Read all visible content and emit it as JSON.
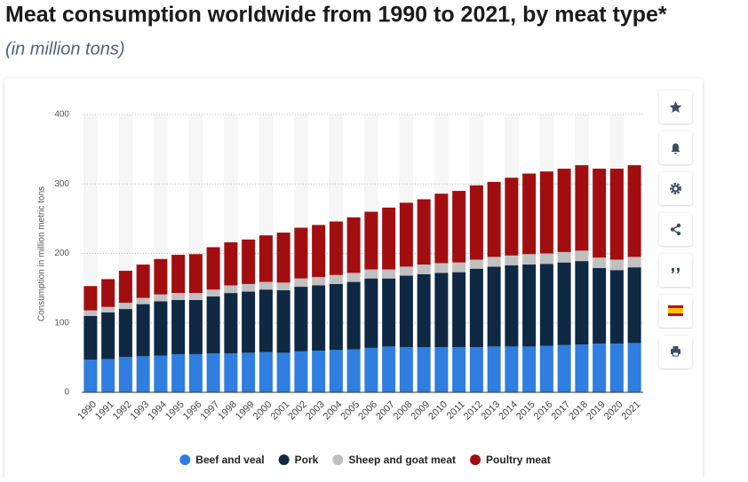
{
  "chart_data": {
    "type": "stacked-bar",
    "title": "Meat consumption worldwide from 1990 to 2021, by meat type*",
    "subtitle": "(in million tons)",
    "y_label": "Consumption in million metric tons",
    "categories": [
      "1990",
      "1991",
      "1992",
      "1993",
      "1994",
      "1995",
      "1996",
      "1997",
      "1998",
      "1999",
      "2000",
      "2001",
      "2002",
      "2003",
      "2004",
      "2005",
      "2006",
      "2007",
      "2008",
      "2009",
      "2010",
      "2011",
      "2012",
      "2013",
      "2014",
      "2015",
      "2016",
      "2017",
      "2018",
      "2019",
      "2020",
      "2021"
    ],
    "series": [
      {
        "name": "Beef and veal",
        "color": "#2f7ee0",
        "values": [
          47,
          48,
          51,
          52,
          53,
          55,
          55,
          56,
          56,
          57,
          58,
          57,
          59,
          60,
          61,
          62,
          64,
          66,
          65,
          65,
          65,
          65,
          65,
          66,
          66,
          66,
          67,
          68,
          69,
          70,
          70,
          71
        ]
      },
      {
        "name": "Pork",
        "color": "#0f2944",
        "values": [
          63,
          67,
          69,
          75,
          78,
          78,
          78,
          82,
          87,
          88,
          90,
          90,
          93,
          94,
          95,
          97,
          100,
          98,
          103,
          105,
          107,
          108,
          113,
          115,
          117,
          118,
          118,
          119,
          120,
          109,
          106,
          109
        ]
      },
      {
        "name": "Sheep and goat meat",
        "color": "#c0c0c0",
        "values": [
          8,
          8,
          9,
          9,
          10,
          10,
          10,
          10,
          11,
          11,
          11,
          11,
          12,
          12,
          13,
          13,
          13,
          13,
          13,
          14,
          14,
          14,
          13,
          14,
          14,
          15,
          15,
          15,
          15,
          15,
          15,
          15
        ]
      },
      {
        "name": "Poultry meat",
        "color": "#a20e10",
        "values": [
          35,
          40,
          46,
          48,
          51,
          55,
          56,
          61,
          62,
          64,
          67,
          72,
          73,
          75,
          77,
          80,
          83,
          89,
          92,
          94,
          100,
          103,
          107,
          108,
          112,
          116,
          118,
          120,
          123,
          128,
          131,
          132
        ]
      }
    ],
    "ylim": [
      0,
      400
    ],
    "yticks": [
      0,
      100,
      200,
      300,
      400
    ],
    "grid": true
  }
}
